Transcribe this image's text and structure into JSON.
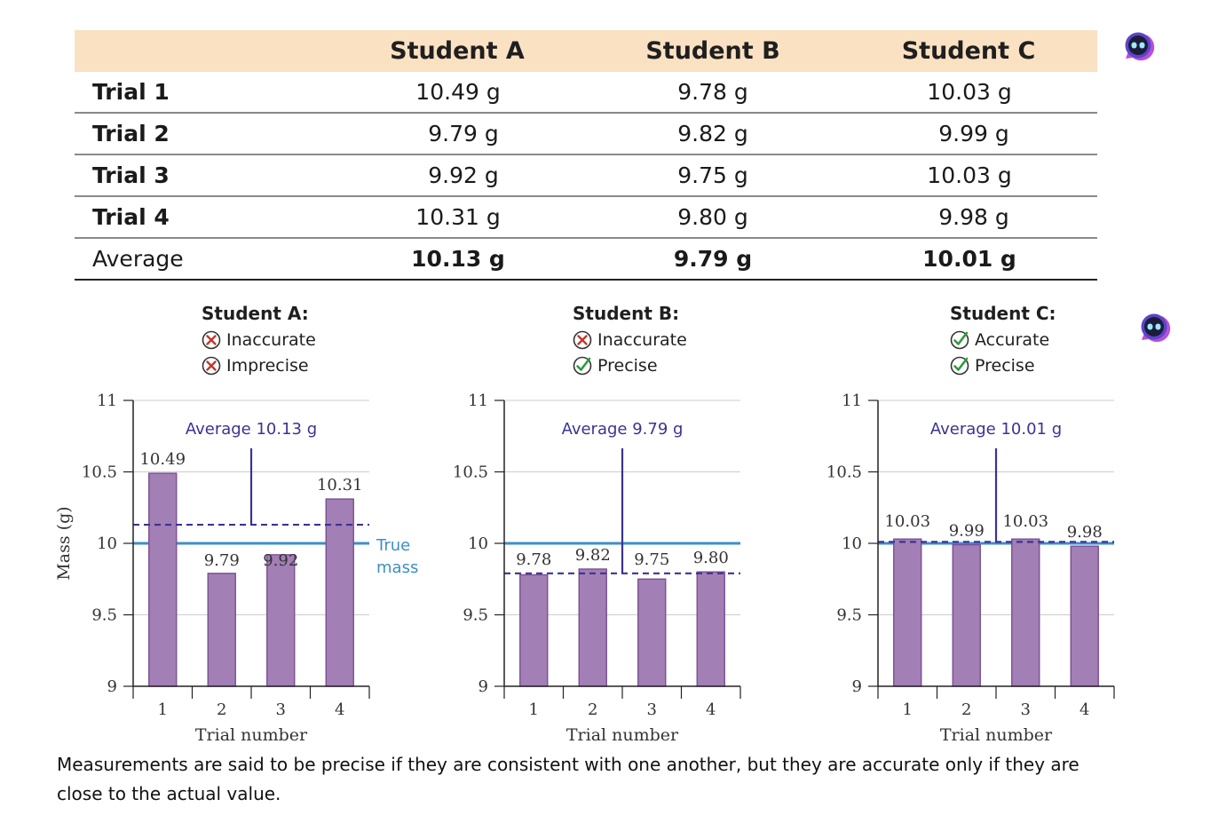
{
  "table": {
    "columns": [
      "",
      "Student A",
      "Student B",
      "Student C"
    ],
    "rows": [
      {
        "label": "Trial 1",
        "values": [
          "10.49 g",
          "9.78 g",
          "10.03 g"
        ]
      },
      {
        "label": "Trial 2",
        "values": [
          "9.79 g",
          "9.82 g",
          "9.99 g"
        ]
      },
      {
        "label": "Trial 3",
        "values": [
          "9.92 g",
          "9.75 g",
          "10.03 g"
        ]
      },
      {
        "label": "Trial 4",
        "values": [
          "10.31 g",
          "9.80 g",
          "9.98 g"
        ]
      },
      {
        "label": "Average",
        "values": [
          "10.13 g",
          "9.79 g",
          "10.01 g"
        ]
      }
    ]
  },
  "verdicts": [
    {
      "title": "Student A:",
      "items": [
        {
          "icon": "x-circle-icon",
          "text": "Inaccurate"
        },
        {
          "icon": "x-circle-icon",
          "text": "Imprecise"
        }
      ]
    },
    {
      "title": "Student B:",
      "items": [
        {
          "icon": "x-circle-icon",
          "text": "Inaccurate"
        },
        {
          "icon": "check-circle-icon",
          "text": "Precise"
        }
      ]
    },
    {
      "title": "Student C:",
      "items": [
        {
          "icon": "check-circle-icon",
          "text": "Accurate"
        },
        {
          "icon": "check-circle-icon",
          "text": "Precise"
        }
      ]
    }
  ],
  "chart_data": [
    {
      "type": "bar",
      "categories": [
        "1",
        "2",
        "3",
        "4"
      ],
      "values": [
        10.49,
        9.79,
        9.92,
        10.31
      ],
      "data_labels": [
        "10.49",
        "9.79",
        "9.92",
        "10.31"
      ],
      "xlabel": "Trial number",
      "ylabel": "Mass (g)",
      "ylim": [
        9,
        11
      ],
      "yticks": [
        "9",
        "9.5",
        "10",
        "10.5",
        "11"
      ],
      "average": 10.13,
      "average_label": "Average 10.13 g",
      "true_mass": 10,
      "true_mass_label": [
        "True",
        "mass"
      ],
      "grid": true
    },
    {
      "type": "bar",
      "categories": [
        "1",
        "2",
        "3",
        "4"
      ],
      "values": [
        9.78,
        9.82,
        9.75,
        9.8
      ],
      "data_labels": [
        "9.78",
        "9.82",
        "9.75",
        "9.80"
      ],
      "xlabel": "Trial number",
      "ylim": [
        9,
        11
      ],
      "yticks": [
        "9",
        "9.5",
        "10",
        "10.5",
        "11"
      ],
      "average": 9.79,
      "average_label": "Average 9.79 g",
      "true_mass": 10,
      "grid": true
    },
    {
      "type": "bar",
      "categories": [
        "1",
        "2",
        "3",
        "4"
      ],
      "values": [
        10.03,
        9.99,
        10.03,
        9.98
      ],
      "data_labels": [
        "10.03",
        "9.99",
        "10.03",
        "9.98"
      ],
      "xlabel": "Trial number",
      "ylim": [
        9,
        11
      ],
      "yticks": [
        "9",
        "9.5",
        "10",
        "10.5",
        "11"
      ],
      "average": 10.01,
      "average_label": "Average 10.01 g",
      "true_mass": 10,
      "grid": true
    }
  ],
  "colors": {
    "bar_fill": "#a27fb4",
    "bar_stroke": "#7b4f93",
    "true_mass": "#3d8fc8",
    "average": "#3b3392",
    "table_header": "#f9e1c2",
    "x_icon": "#c0392b",
    "check_icon": "#2e9a3e"
  },
  "caption": "Measurements are said to be precise if they are consistent with one another, but they are accurate only if they are close to the actual value."
}
